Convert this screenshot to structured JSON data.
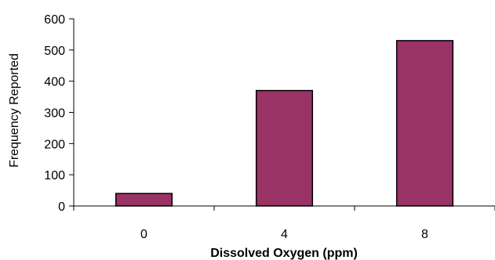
{
  "chart_data": {
    "type": "bar",
    "categories": [
      "0",
      "4",
      "8"
    ],
    "values": [
      40,
      370,
      530
    ],
    "title": "",
    "xlabel": "Dissolved Oxygen (ppm)",
    "ylabel": "Frequency Reported",
    "ylim": [
      0,
      600
    ],
    "yticks": [
      "0",
      "100",
      "200",
      "300",
      "400",
      "500",
      "600"
    ],
    "grid": false,
    "legend": "none",
    "bar_color": "#993366",
    "bar_edge_color": "#000000"
  }
}
